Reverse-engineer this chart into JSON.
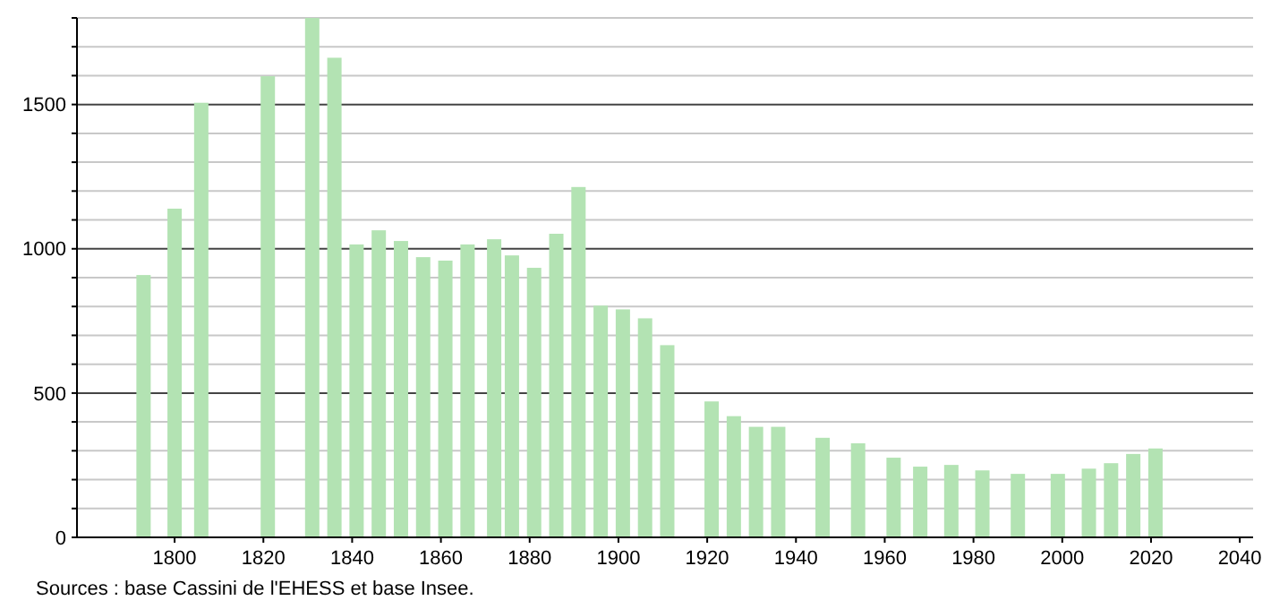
{
  "chart_data": {
    "type": "bar",
    "x": [
      1793,
      1800,
      1806,
      1821,
      1831,
      1836,
      1841,
      1846,
      1851,
      1856,
      1861,
      1866,
      1872,
      1876,
      1881,
      1886,
      1891,
      1896,
      1901,
      1906,
      1911,
      1921,
      1926,
      1931,
      1936,
      1946,
      1954,
      1962,
      1968,
      1975,
      1982,
      1990,
      1999,
      2006,
      2011,
      2016,
      2021
    ],
    "values": [
      909,
      1139,
      1506,
      1598,
      1800,
      1662,
      1015,
      1064,
      1027,
      971,
      959,
      1015,
      1033,
      977,
      934,
      1052,
      1214,
      803,
      790,
      759,
      666,
      471,
      420,
      383,
      383,
      345,
      326,
      276,
      245,
      251,
      232,
      220,
      220,
      238,
      257,
      289,
      308
    ],
    "color": "#b3e3b3",
    "xlim": [
      1778,
      2043
    ],
    "xticks": [
      1800,
      1820,
      1840,
      1860,
      1880,
      1900,
      1920,
      1940,
      1960,
      1980,
      2000,
      2020,
      2040
    ],
    "ylim": [
      0,
      1800
    ],
    "yticks": [
      0,
      {
        "value": 100,
        "label": null
      },
      {
        "value": 200,
        "label": null
      },
      {
        "value": 300,
        "label": null
      },
      {
        "value": 400,
        "label": null
      },
      500,
      {
        "value": 600,
        "label": null
      },
      {
        "value": 700,
        "label": null
      },
      {
        "value": 800,
        "label": null
      },
      {
        "value": 900,
        "label": null
      },
      1000,
      {
        "value": 1100,
        "label": null
      },
      {
        "value": 1200,
        "label": null
      },
      {
        "value": 1300,
        "label": null
      },
      {
        "value": 1400,
        "label": null
      },
      1500,
      {
        "value": 1600,
        "label": null
      },
      {
        "value": 1700,
        "label": null
      },
      {
        "value": 1800,
        "label": null
      }
    ],
    "grid": true,
    "annotations": [
      "Sources : base Cassini de l'EHESS et base Insee."
    ]
  }
}
